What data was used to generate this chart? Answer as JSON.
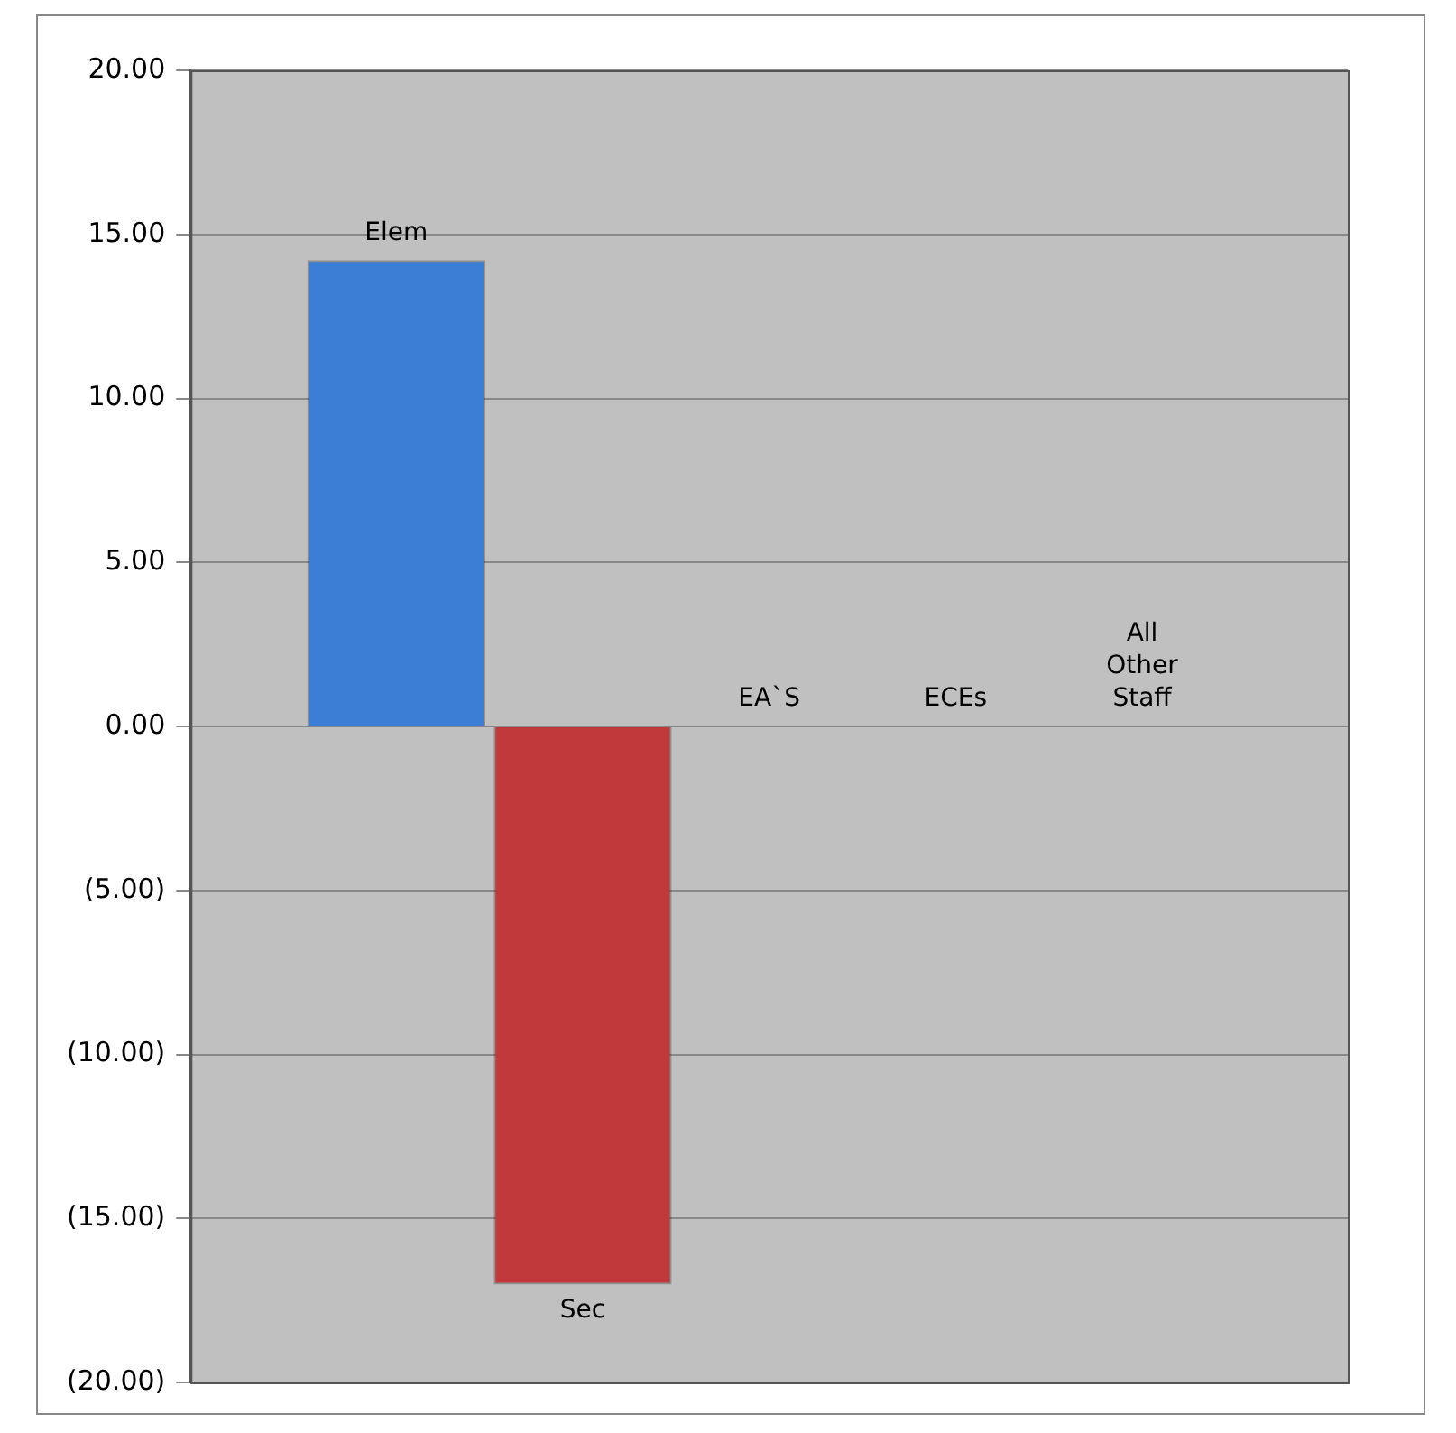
{
  "chart_data": {
    "type": "bar",
    "categories": [
      "Elem",
      "Sec",
      "EA`S",
      "ECEs",
      "All Other Staff"
    ],
    "values": [
      14.2,
      -17.0,
      0,
      0,
      0
    ],
    "colors": [
      "#3a7fd5",
      "#c0393b",
      "#9bbb59",
      "#8064a2",
      "#4bacc6"
    ],
    "ylim": [
      -20,
      20
    ],
    "yticks": [
      {
        "value": -20,
        "label": "(20.00)"
      },
      {
        "value": -15,
        "label": "(15.00)"
      },
      {
        "value": -10,
        "label": "(10.00)"
      },
      {
        "value": -5,
        "label": "(5.00)"
      },
      {
        "value": 0,
        "label": "0.00"
      },
      {
        "value": 5,
        "label": "5.00"
      },
      {
        "value": 10,
        "label": "10.00"
      },
      {
        "value": 15,
        "label": "15.00"
      },
      {
        "value": 20,
        "label": "20.00"
      }
    ],
    "grid": "y",
    "legend": false
  }
}
